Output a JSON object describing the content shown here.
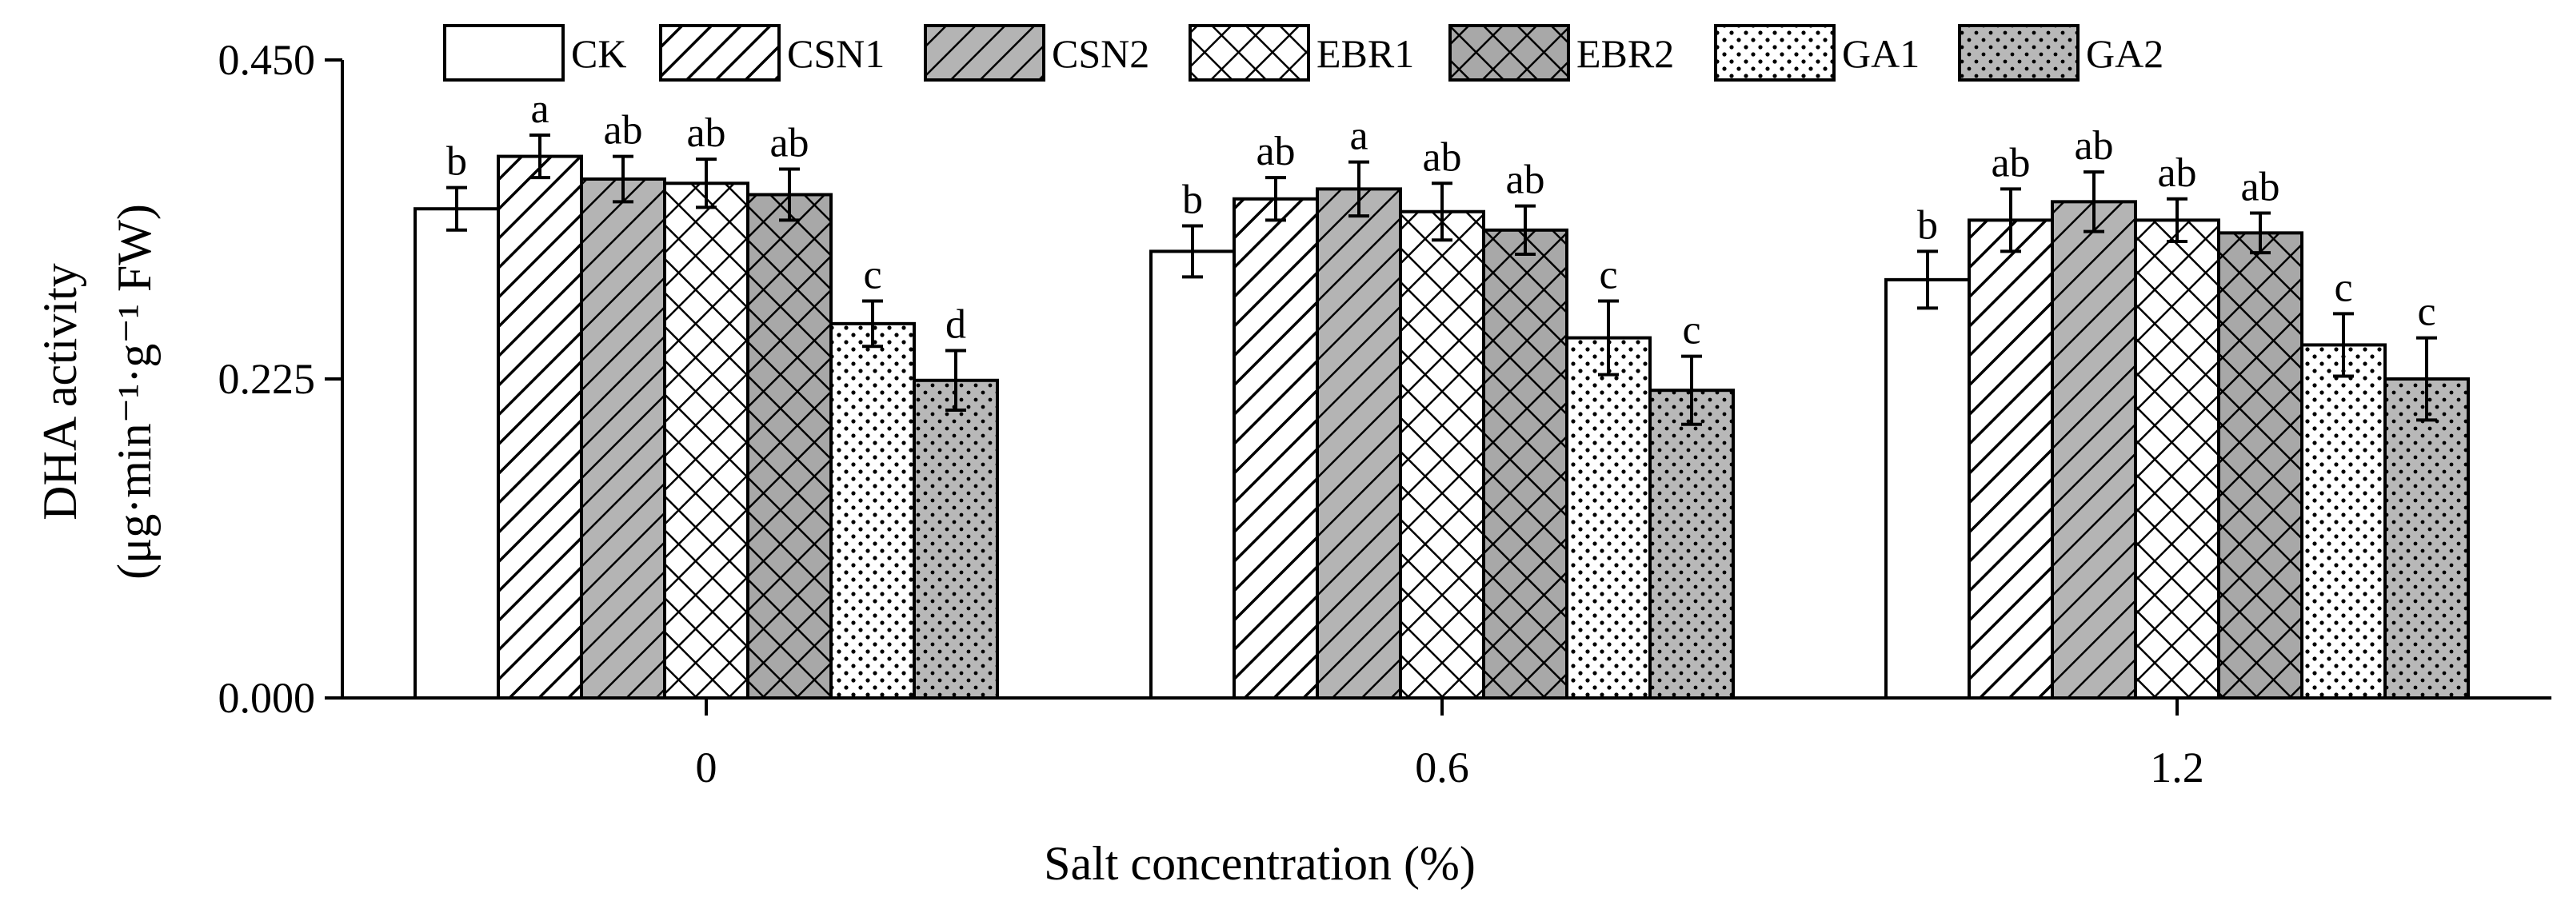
{
  "chart_data": {
    "type": "bar",
    "xlabel": "Salt concentration (%)",
    "ylabel_line1": "DHA activity",
    "ylabel_line2": "(μg·min⁻¹·g⁻¹ FW)",
    "categories": [
      "0",
      "0.6",
      "1.2"
    ],
    "yticks": [
      "0.000",
      "0.225",
      "0.450"
    ],
    "ylim": [
      0,
      0.45
    ],
    "legend_position": "top",
    "series": [
      {
        "name": "CK",
        "pattern": "white",
        "values": [
          0.345,
          0.315,
          0.295
        ],
        "errors": [
          0.015,
          0.018,
          0.02
        ],
        "labels": [
          "b",
          "b",
          "b"
        ]
      },
      {
        "name": "CSN1",
        "pattern": "diagonal",
        "values": [
          0.382,
          0.352,
          0.337
        ],
        "errors": [
          0.015,
          0.015,
          0.022
        ],
        "labels": [
          "a",
          "ab",
          "ab"
        ]
      },
      {
        "name": "CSN2",
        "pattern": "diagonal-gray",
        "values": [
          0.366,
          0.359,
          0.35
        ],
        "errors": [
          0.016,
          0.019,
          0.021
        ],
        "labels": [
          "ab",
          "a",
          "ab"
        ]
      },
      {
        "name": "EBR1",
        "pattern": "crosshatch",
        "values": [
          0.363,
          0.343,
          0.337
        ],
        "errors": [
          0.017,
          0.02,
          0.015
        ],
        "labels": [
          "ab",
          "ab",
          "ab"
        ]
      },
      {
        "name": "EBR2",
        "pattern": "crosshatch-gray",
        "values": [
          0.355,
          0.33,
          0.328
        ],
        "errors": [
          0.018,
          0.017,
          0.014
        ],
        "labels": [
          "ab",
          "ab",
          "ab"
        ]
      },
      {
        "name": "GA1",
        "pattern": "dots-white",
        "values": [
          0.264,
          0.254,
          0.249
        ],
        "errors": [
          0.016,
          0.026,
          0.022
        ],
        "labels": [
          "c",
          "c",
          "c"
        ]
      },
      {
        "name": "GA2",
        "pattern": "dots-gray",
        "values": [
          0.224,
          0.217,
          0.225
        ],
        "errors": [
          0.021,
          0.024,
          0.029
        ],
        "labels": [
          "d",
          "c",
          "c"
        ]
      }
    ]
  }
}
